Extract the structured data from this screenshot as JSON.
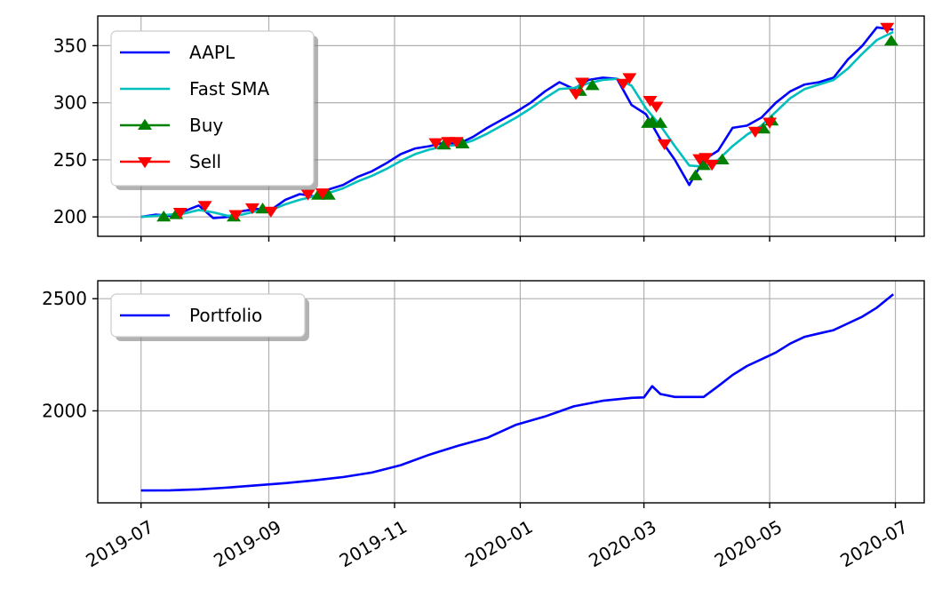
{
  "chart_data": [
    {
      "type": "line",
      "title": "",
      "xlabel": "",
      "ylabel": "",
      "xlim": [
        "2019-06-10",
        "2020-07-15"
      ],
      "ylim": [
        183,
        376
      ],
      "y_ticks": [
        200,
        250,
        300,
        350
      ],
      "x_ticks": [
        "2019-07-01",
        "2019-09-01",
        "2019-11-01",
        "2020-01-01",
        "2020-03-01",
        "2020-05-01",
        "2020-07-01"
      ],
      "x_tick_labels": [
        "",
        "",
        "",
        "",
        "",
        "",
        ""
      ],
      "grid": true,
      "legend": {
        "placement": "upper-left",
        "entries": [
          {
            "label": "AAPL",
            "color": "#0000ff",
            "marker": "none"
          },
          {
            "label": "Fast SMA",
            "color": "#00bfbf",
            "marker": "none"
          },
          {
            "label": "Buy",
            "color": "#008000",
            "marker": "triangle-up"
          },
          {
            "label": "Sell",
            "color": "#ff0000",
            "marker": "triangle-down"
          }
        ]
      },
      "series": [
        {
          "name": "AAPL",
          "color": "#0000ff",
          "points": [
            [
              "2019-07-01",
              200
            ],
            [
              "2019-07-08",
              202
            ],
            [
              "2019-07-15",
              201
            ],
            [
              "2019-07-22",
              205
            ],
            [
              "2019-07-29",
              210
            ],
            [
              "2019-08-05",
              199
            ],
            [
              "2019-08-12",
              200
            ],
            [
              "2019-08-19",
              205
            ],
            [
              "2019-08-26",
              207
            ],
            [
              "2019-09-02",
              206
            ],
            [
              "2019-09-09",
              215
            ],
            [
              "2019-09-16",
              220
            ],
            [
              "2019-09-23",
              218
            ],
            [
              "2019-09-30",
              224
            ],
            [
              "2019-10-07",
              228
            ],
            [
              "2019-10-14",
              235
            ],
            [
              "2019-10-21",
              240
            ],
            [
              "2019-10-28",
              247
            ],
            [
              "2019-11-04",
              255
            ],
            [
              "2019-11-11",
              260
            ],
            [
              "2019-11-18",
              262
            ],
            [
              "2019-11-25",
              265
            ],
            [
              "2019-12-02",
              264
            ],
            [
              "2019-12-09",
              270
            ],
            [
              "2019-12-16",
              278
            ],
            [
              "2019-12-23",
              285
            ],
            [
              "2019-12-30",
              292
            ],
            [
              "2020-01-06",
              300
            ],
            [
              "2020-01-13",
              310
            ],
            [
              "2020-01-20",
              318
            ],
            [
              "2020-01-27",
              312
            ],
            [
              "2020-02-03",
              320
            ],
            [
              "2020-02-10",
              322
            ],
            [
              "2020-02-17",
              321
            ],
            [
              "2020-02-24",
              298
            ],
            [
              "2020-03-02",
              290
            ],
            [
              "2020-03-09",
              268
            ],
            [
              "2020-03-16",
              250
            ],
            [
              "2020-03-23",
              228
            ],
            [
              "2020-03-30",
              250
            ],
            [
              "2020-04-06",
              258
            ],
            [
              "2020-04-13",
              278
            ],
            [
              "2020-04-20",
              280
            ],
            [
              "2020-04-27",
              287
            ],
            [
              "2020-05-04",
              300
            ],
            [
              "2020-05-11",
              310
            ],
            [
              "2020-05-18",
              316
            ],
            [
              "2020-05-25",
              318
            ],
            [
              "2020-06-01",
              322
            ],
            [
              "2020-06-08",
              338
            ],
            [
              "2020-06-15",
              350
            ],
            [
              "2020-06-22",
              366
            ],
            [
              "2020-06-30",
              364
            ]
          ]
        },
        {
          "name": "Fast SMA",
          "color": "#00bfbf",
          "points": [
            [
              "2019-07-01",
              200
            ],
            [
              "2019-07-08",
              201
            ],
            [
              "2019-07-15",
              202
            ],
            [
              "2019-07-22",
              203
            ],
            [
              "2019-07-29",
              206
            ],
            [
              "2019-08-05",
              204
            ],
            [
              "2019-08-12",
              201
            ],
            [
              "2019-08-19",
              202
            ],
            [
              "2019-08-26",
              205
            ],
            [
              "2019-09-02",
              206
            ],
            [
              "2019-09-09",
              211
            ],
            [
              "2019-09-16",
              215
            ],
            [
              "2019-09-23",
              218
            ],
            [
              "2019-09-30",
              221
            ],
            [
              "2019-10-07",
              225
            ],
            [
              "2019-10-14",
              231
            ],
            [
              "2019-10-21",
              236
            ],
            [
              "2019-10-28",
              242
            ],
            [
              "2019-11-04",
              249
            ],
            [
              "2019-11-11",
              255
            ],
            [
              "2019-11-18",
              259
            ],
            [
              "2019-11-25",
              262
            ],
            [
              "2019-12-02",
              263
            ],
            [
              "2019-12-09",
              267
            ],
            [
              "2019-12-16",
              273
            ],
            [
              "2019-12-23",
              280
            ],
            [
              "2019-12-30",
              287
            ],
            [
              "2020-01-06",
              295
            ],
            [
              "2020-01-13",
              304
            ],
            [
              "2020-01-20",
              312
            ],
            [
              "2020-01-27",
              313
            ],
            [
              "2020-02-03",
              317
            ],
            [
              "2020-02-10",
              320
            ],
            [
              "2020-02-17",
              321
            ],
            [
              "2020-02-24",
              315
            ],
            [
              "2020-03-02",
              295
            ],
            [
              "2020-03-09",
              280
            ],
            [
              "2020-03-16",
              262
            ],
            [
              "2020-03-23",
              245
            ],
            [
              "2020-03-30",
              244
            ],
            [
              "2020-04-06",
              250
            ],
            [
              "2020-04-13",
              262
            ],
            [
              "2020-04-20",
              272
            ],
            [
              "2020-04-27",
              280
            ],
            [
              "2020-05-04",
              292
            ],
            [
              "2020-05-11",
              304
            ],
            [
              "2020-05-18",
              312
            ],
            [
              "2020-05-25",
              316
            ],
            [
              "2020-06-01",
              320
            ],
            [
              "2020-06-08",
              330
            ],
            [
              "2020-06-15",
              343
            ],
            [
              "2020-06-22",
              355
            ],
            [
              "2020-06-30",
              362
            ]
          ]
        },
        {
          "name": "Buy",
          "color": "#008000",
          "marker": "triangle-up",
          "points": [
            [
              "2019-07-12",
              200
            ],
            [
              "2019-07-18",
              202
            ],
            [
              "2019-08-15",
              200
            ],
            [
              "2019-08-29",
              207
            ],
            [
              "2019-09-25",
              219
            ],
            [
              "2019-09-30",
              219
            ],
            [
              "2019-11-25",
              263
            ],
            [
              "2019-12-04",
              264
            ],
            [
              "2020-01-30",
              310
            ],
            [
              "2020-02-05",
              315
            ],
            [
              "2020-03-03",
              282
            ],
            [
              "2020-03-05",
              283
            ],
            [
              "2020-03-09",
              282
            ],
            [
              "2020-03-26",
              236
            ],
            [
              "2020-03-30",
              245
            ],
            [
              "2020-04-08",
              250
            ],
            [
              "2020-04-28",
              277
            ],
            [
              "2020-05-02",
              284
            ],
            [
              "2020-06-29",
              354
            ]
          ]
        },
        {
          "name": "Sell",
          "color": "#ff0000",
          "marker": "triangle-down",
          "points": [
            [
              "2019-07-20",
              204
            ],
            [
              "2019-08-01",
              210
            ],
            [
              "2019-08-16",
              202
            ],
            [
              "2019-08-24",
              208
            ],
            [
              "2019-09-02",
              205
            ],
            [
              "2019-09-20",
              220
            ],
            [
              "2019-09-27",
              221
            ],
            [
              "2019-11-21",
              265
            ],
            [
              "2019-11-27",
              266
            ],
            [
              "2019-12-01",
              266
            ],
            [
              "2020-01-28",
              308
            ],
            [
              "2020-01-31",
              318
            ],
            [
              "2020-02-20",
              317
            ],
            [
              "2020-02-23",
              322
            ],
            [
              "2020-03-04",
              302
            ],
            [
              "2020-03-07",
              297
            ],
            [
              "2020-03-11",
              264
            ],
            [
              "2020-03-28",
              251
            ],
            [
              "2020-03-31",
              252
            ],
            [
              "2020-04-03",
              246
            ],
            [
              "2020-04-24",
              275
            ],
            [
              "2020-05-01",
              283
            ],
            [
              "2020-06-27",
              366
            ]
          ]
        }
      ]
    },
    {
      "type": "line",
      "title": "",
      "xlabel": "",
      "ylabel": "",
      "xlim": [
        "2019-06-10",
        "2020-07-15"
      ],
      "ylim": [
        1590,
        2580
      ],
      "y_ticks": [
        2000,
        2500
      ],
      "x_ticks": [
        "2019-07-01",
        "2019-09-01",
        "2019-11-01",
        "2020-01-01",
        "2020-03-01",
        "2020-05-01",
        "2020-07-01"
      ],
      "x_tick_labels": [
        "2019-07",
        "2019-09",
        "2019-11",
        "2020-01",
        "2020-03",
        "2020-05",
        "2020-07"
      ],
      "grid": true,
      "legend": {
        "placement": "upper-left",
        "entries": [
          {
            "label": "Portfolio",
            "color": "#0000ff",
            "marker": "none"
          }
        ]
      },
      "series": [
        {
          "name": "Portfolio",
          "color": "#0000ff",
          "points": [
            [
              "2019-07-01",
              1645
            ],
            [
              "2019-07-15",
              1646
            ],
            [
              "2019-07-29",
              1650
            ],
            [
              "2019-08-12",
              1658
            ],
            [
              "2019-08-26",
              1668
            ],
            [
              "2019-09-09",
              1678
            ],
            [
              "2019-09-23",
              1690
            ],
            [
              "2019-10-07",
              1705
            ],
            [
              "2019-10-21",
              1725
            ],
            [
              "2019-11-04",
              1758
            ],
            [
              "2019-11-18",
              1805
            ],
            [
              "2019-12-02",
              1845
            ],
            [
              "2019-12-16",
              1880
            ],
            [
              "2019-12-30",
              1938
            ],
            [
              "2020-01-13",
              1975
            ],
            [
              "2020-01-27",
              2020
            ],
            [
              "2020-02-10",
              2045
            ],
            [
              "2020-02-24",
              2058
            ],
            [
              "2020-03-01",
              2060
            ],
            [
              "2020-03-05",
              2110
            ],
            [
              "2020-03-09",
              2075
            ],
            [
              "2020-03-16",
              2062
            ],
            [
              "2020-03-23",
              2062
            ],
            [
              "2020-03-30",
              2062
            ],
            [
              "2020-04-06",
              2110
            ],
            [
              "2020-04-13",
              2160
            ],
            [
              "2020-04-20",
              2200
            ],
            [
              "2020-04-27",
              2230
            ],
            [
              "2020-05-04",
              2260
            ],
            [
              "2020-05-11",
              2300
            ],
            [
              "2020-05-18",
              2330
            ],
            [
              "2020-05-25",
              2345
            ],
            [
              "2020-06-01",
              2360
            ],
            [
              "2020-06-08",
              2390
            ],
            [
              "2020-06-15",
              2420
            ],
            [
              "2020-06-22",
              2460
            ],
            [
              "2020-06-30",
              2520
            ]
          ]
        }
      ]
    }
  ]
}
